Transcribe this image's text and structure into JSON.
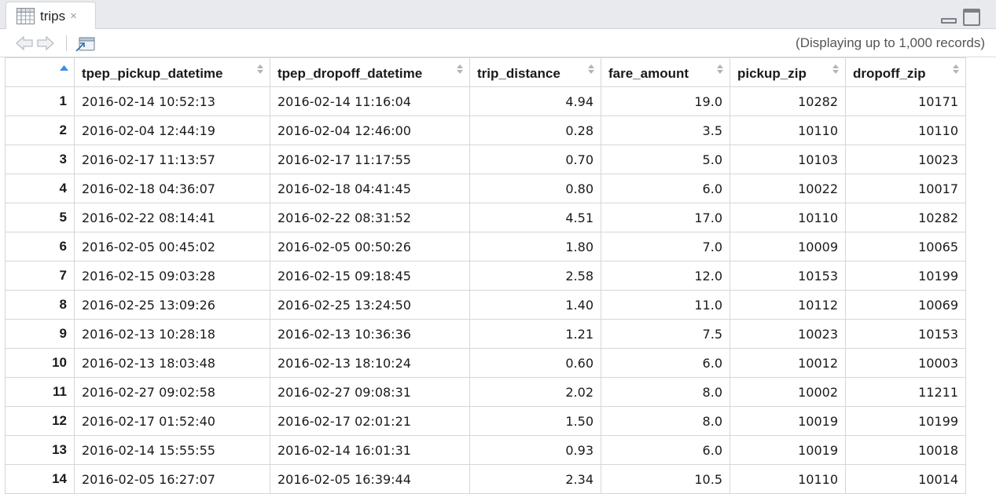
{
  "tab": {
    "title": "trips",
    "close": "×",
    "icon": "table-icon"
  },
  "toolbar": {
    "status": "(Displaying up to 1,000 records)"
  },
  "columns": [
    "tpep_pickup_datetime",
    "tpep_dropoff_datetime",
    "trip_distance",
    "fare_amount",
    "pickup_zip",
    "dropoff_zip"
  ],
  "rows": [
    [
      "1",
      "2016-02-14 10:52:13",
      "2016-02-14 11:16:04",
      "4.94",
      "19.0",
      "10282",
      "10171"
    ],
    [
      "2",
      "2016-02-04 12:44:19",
      "2016-02-04 12:46:00",
      "0.28",
      "3.5",
      "10110",
      "10110"
    ],
    [
      "3",
      "2016-02-17 11:13:57",
      "2016-02-17 11:17:55",
      "0.70",
      "5.0",
      "10103",
      "10023"
    ],
    [
      "4",
      "2016-02-18 04:36:07",
      "2016-02-18 04:41:45",
      "0.80",
      "6.0",
      "10022",
      "10017"
    ],
    [
      "5",
      "2016-02-22 08:14:41",
      "2016-02-22 08:31:52",
      "4.51",
      "17.0",
      "10110",
      "10282"
    ],
    [
      "6",
      "2016-02-05 00:45:02",
      "2016-02-05 00:50:26",
      "1.80",
      "7.0",
      "10009",
      "10065"
    ],
    [
      "7",
      "2016-02-15 09:03:28",
      "2016-02-15 09:18:45",
      "2.58",
      "12.0",
      "10153",
      "10199"
    ],
    [
      "8",
      "2016-02-25 13:09:26",
      "2016-02-25 13:24:50",
      "1.40",
      "11.0",
      "10112",
      "10069"
    ],
    [
      "9",
      "2016-02-13 10:28:18",
      "2016-02-13 10:36:36",
      "1.21",
      "7.5",
      "10023",
      "10153"
    ],
    [
      "10",
      "2016-02-13 18:03:48",
      "2016-02-13 18:10:24",
      "0.60",
      "6.0",
      "10012",
      "10003"
    ],
    [
      "11",
      "2016-02-27 09:02:58",
      "2016-02-27 09:08:31",
      "2.02",
      "8.0",
      "10002",
      "11211"
    ],
    [
      "12",
      "2016-02-17 01:52:40",
      "2016-02-17 02:01:21",
      "1.50",
      "8.0",
      "10019",
      "10199"
    ],
    [
      "13",
      "2016-02-14 15:55:55",
      "2016-02-14 16:01:31",
      "0.93",
      "6.0",
      "10019",
      "10018"
    ],
    [
      "14",
      "2016-02-05 16:27:07",
      "2016-02-05 16:39:44",
      "2.34",
      "10.5",
      "10110",
      "10014"
    ]
  ],
  "colors": {
    "accent": "#3a8ee6",
    "grid": "#d4d6d9",
    "tabbar": "#e8eaed"
  }
}
